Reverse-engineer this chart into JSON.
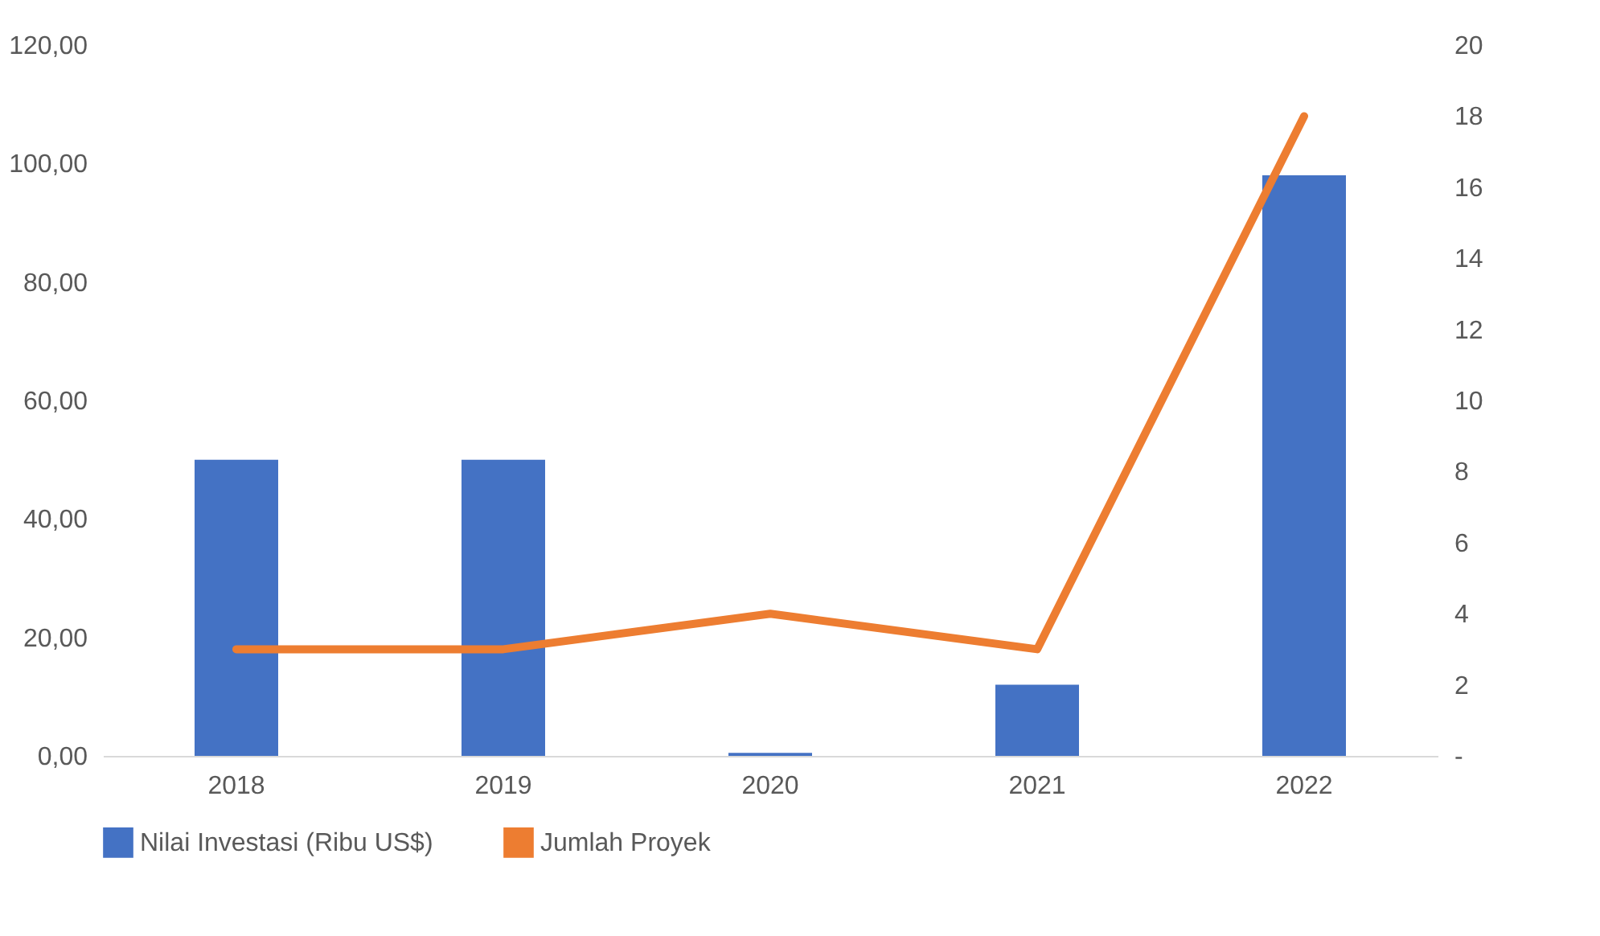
{
  "chart_data": {
    "type": "bar",
    "categories": [
      "2018",
      "2019",
      "2020",
      "2021",
      "2022"
    ],
    "series": [
      {
        "name": "Nilai Investasi (Ribu US$)",
        "color": "#4472c4",
        "values": [
          50,
          50,
          0.5,
          12,
          98
        ]
      },
      {
        "name": "Jumlah Proyek",
        "type": "line",
        "axis": "y2",
        "color": "#ed7d31",
        "values": [
          3,
          3,
          4,
          3,
          18
        ]
      }
    ],
    "ylim": [
      0,
      120
    ],
    "yticks": [
      {
        "value": 0,
        "label": "0,00"
      },
      {
        "value": 20,
        "label": "20,00"
      },
      {
        "value": 40,
        "label": "40,00"
      },
      {
        "value": 60,
        "label": "60,00"
      },
      {
        "value": 80,
        "label": "80,00"
      },
      {
        "value": 100,
        "label": "100,00"
      },
      {
        "value": 120,
        "label": "120,00"
      }
    ],
    "y2lim": [
      0,
      20
    ],
    "y2ticks": [
      {
        "value": 0,
        "label": "-"
      },
      2,
      4,
      6,
      8,
      10,
      12,
      14,
      16,
      18,
      20
    ],
    "legend": "bottom"
  }
}
